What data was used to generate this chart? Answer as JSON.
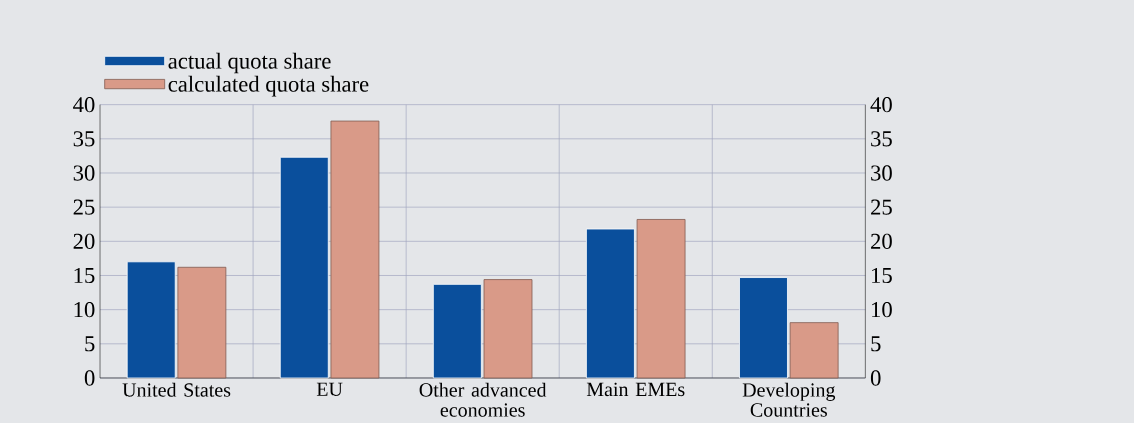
{
  "chart_data": {
    "type": "bar",
    "categories": [
      "United States",
      "EU",
      "Other advanced economies",
      "Main EMEs",
      "Developing Countries"
    ],
    "series": [
      {
        "name": "actual quota share",
        "color": "#0a4f9c",
        "values": [
          17.0,
          32.3,
          13.7,
          21.8,
          14.7
        ]
      },
      {
        "name": "calculated quota share",
        "color": "#d99a88",
        "values": [
          16.2,
          37.6,
          14.4,
          23.2,
          8.1
        ]
      }
    ],
    "ylim": [
      0,
      40
    ],
    "yticks": [
      0,
      5,
      10,
      15,
      20,
      25,
      30,
      35,
      40
    ],
    "y2lim": [
      0,
      40
    ],
    "y2ticks": [
      0,
      5,
      10,
      15,
      20,
      25,
      30,
      35,
      40
    ],
    "grid": true,
    "legend": "top left"
  }
}
